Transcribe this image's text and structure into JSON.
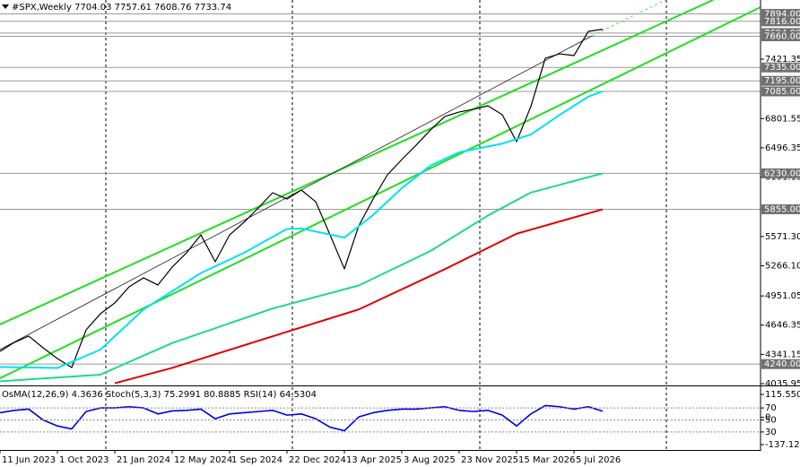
{
  "header": {
    "symbol": "#SPX,Weekly",
    "open": 7704.03,
    "high": 7757.61,
    "low": 7608.76,
    "close": 7733.74
  },
  "chart_data": [
    {
      "type": "line",
      "x": [
        "2023-06-11",
        "2023-07-09",
        "2023-08-06",
        "2023-09-03",
        "2023-10-01",
        "2023-10-29",
        "2023-11-26",
        "2023-12-24",
        "2024-01-21",
        "2024-02-18",
        "2024-03-17",
        "2024-04-14",
        "2024-05-12",
        "2024-06-09",
        "2024-07-07",
        "2024-08-04",
        "2024-09-01",
        "2024-09-29",
        "2024-10-27",
        "2024-11-24",
        "2024-12-22",
        "2025-01-19",
        "2025-02-16",
        "2025-03-16",
        "2025-04-13",
        "2025-05-11",
        "2025-06-08",
        "2025-07-06",
        "2025-08-03",
        "2025-08-31",
        "2025-09-28",
        "2025-10-26",
        "2025-11-23",
        "2025-12-21",
        "2026-01-18",
        "2026-02-15",
        "2026-03-15",
        "2026-04-12",
        "2026-05-10",
        "2026-06-07",
        "2026-07-05",
        "2026-08-02",
        "2026-08-30"
      ],
      "xlim": [
        "2023-06-11",
        "2027-07-04"
      ],
      "xticks": [
        {
          "value": "2023-06-11",
          "label": "11 Jun 2023"
        },
        {
          "value": "2023-10-01",
          "label": "1 Oct 2023"
        },
        {
          "value": "2024-01-21",
          "label": "21 Jan 2024"
        },
        {
          "value": "2024-05-12",
          "label": "12 May 2024"
        },
        {
          "value": "2024-09-01",
          "label": "1 Sep 2024"
        },
        {
          "value": "2024-12-22",
          "label": "22 Dec 2024"
        },
        {
          "value": "2025-04-13",
          "label": "13 Apr 2025"
        },
        {
          "value": "2025-08-03",
          "label": "3 Aug 2025"
        },
        {
          "value": "2025-11-23",
          "label": "23 Nov 2025"
        },
        {
          "value": "2026-03-15",
          "label": "15 Mar 2026"
        },
        {
          "value": "2026-07-05",
          "label": "5 Jul 2026"
        }
      ],
      "ylim": [
        4035.95,
        8038.6
      ],
      "yticks": [
        7421.35,
        6801.55,
        6496.35,
        6191.15,
        {
          "value": 5571.3,
          "label": "5571.30"
        },
        {
          "value": 5266.1,
          "label": "5266.10"
        },
        4951.05,
        4646.35,
        4341.15,
        4035.95
      ],
      "hlines": [
        {
          "value": 7894,
          "label": "7894.00"
        },
        {
          "value": 7816,
          "label": "7816.00"
        },
        {
          "value": 7694,
          "label": "7694.00"
        },
        {
          "value": 7660,
          "label": "7660.00"
        },
        {
          "value": 7335,
          "label": "7335.00"
        },
        {
          "value": 7195,
          "label": "7195.00"
        },
        {
          "value": 7085,
          "label": "7085.00"
        },
        {
          "value": 6230,
          "label": "6230.00"
        },
        {
          "value": 5855,
          "label": "5855.00"
        },
        {
          "value": 4240,
          "label": "4240.00"
        }
      ],
      "hline_color": "#9a9a9a",
      "series": [
        {
          "color": "#000000",
          "values": [
            4373,
            4466,
            4532,
            4410,
            4298,
            4204,
            4597,
            4765,
            4878,
            5046,
            5140,
            5065,
            5252,
            5401,
            5588,
            5308,
            5588,
            5719,
            5869,
            6028,
            5962,
            6056,
            5934,
            5588,
            5233,
            5682,
            5962,
            6215,
            6374,
            6524,
            6683,
            6823,
            6870,
            6898,
            6935,
            6842,
            6561,
            6930,
            7431,
            7477,
            7459,
            7711,
            7733.74
          ]
        },
        {
          "color": "#00e1f0",
          "x": [
            "2023-06-11",
            "2023-10-01",
            "2023-12-24",
            "2024-03-17",
            "2024-07-07",
            "2024-09-29",
            "2024-12-22",
            "2025-01-19",
            "2025-04-13",
            "2025-06-08",
            "2025-08-03",
            "2025-09-28",
            "2025-11-23",
            "2026-02-15",
            "2026-04-12",
            "2026-06-07",
            "2026-08-02",
            "2026-08-30"
          ],
          "values": [
            4210,
            4200,
            4390,
            4810,
            5190,
            5400,
            5650,
            5655,
            5560,
            5795,
            6075,
            6310,
            6450,
            6540,
            6635,
            6840,
            7030,
            7085
          ]
        },
        {
          "color": "#1ed98a",
          "x": [
            "2023-06-11",
            "2023-12-24",
            "2024-05-12",
            "2024-11-24",
            "2025-05-11",
            "2025-09-28",
            "2026-01-18",
            "2026-04-12",
            "2026-08-30"
          ],
          "values": [
            4060,
            4130,
            4460,
            4820,
            5060,
            5420,
            5790,
            6030,
            6230
          ]
        },
        {
          "color": "#e00000",
          "x": [
            "2024-01-21",
            "2024-05-12",
            "2024-11-24",
            "2025-05-11",
            "2025-10-26",
            "2026-03-15",
            "2026-08-30"
          ],
          "values": [
            4040,
            4200,
            4530,
            4810,
            5230,
            5600,
            5855
          ]
        }
      ]
    },
    {
      "type": "line",
      "legend": [
        {
          "name": "OsMA(12,26,9)",
          "values": [
            4.3636
          ]
        },
        {
          "name": "Stoch(5,3,3)",
          "values": [
            75.2991,
            80.8885
          ]
        },
        {
          "name": "RSI(14)",
          "values": [
            64.5304
          ]
        }
      ],
      "x": [
        "2023-06-11",
        "2023-07-09",
        "2023-08-06",
        "2023-09-03",
        "2023-10-01",
        "2023-10-29",
        "2023-11-26",
        "2023-12-24",
        "2024-01-21",
        "2024-02-18",
        "2024-03-17",
        "2024-04-14",
        "2024-05-12",
        "2024-06-09",
        "2024-07-07",
        "2024-08-04",
        "2024-09-01",
        "2024-09-29",
        "2024-10-27",
        "2024-11-24",
        "2024-12-22",
        "2025-01-19",
        "2025-02-16",
        "2025-03-16",
        "2025-04-13",
        "2025-05-11",
        "2025-06-08",
        "2025-07-06",
        "2025-08-03",
        "2025-08-31",
        "2025-09-28",
        "2025-10-26",
        "2025-11-23",
        "2025-12-21",
        "2026-01-18",
        "2026-02-15",
        "2026-03-15",
        "2026-04-12",
        "2026-05-10",
        "2026-06-07",
        "2026-07-05",
        "2026-08-02",
        "2026-08-30"
      ],
      "ylim": [
        -137.1285,
        115.5501
      ],
      "yticks": [
        115.5501,
        0,
        -137.1285
      ],
      "y2lim": [
        0,
        100
      ],
      "y2ticks": [
        70,
        50,
        30
      ],
      "series": [
        {
          "color": "#0000dd",
          "axis": "y2",
          "values": [
            62,
            66,
            68,
            50,
            40,
            35,
            64,
            70,
            70,
            72,
            70,
            60,
            65,
            66,
            68,
            52,
            60,
            62,
            64,
            66,
            58,
            60,
            52,
            38,
            32,
            55,
            62,
            66,
            68,
            68,
            70,
            72,
            66,
            64,
            66,
            58,
            40,
            60,
            74,
            72,
            68,
            72,
            64.5304
          ]
        }
      ]
    }
  ]
}
